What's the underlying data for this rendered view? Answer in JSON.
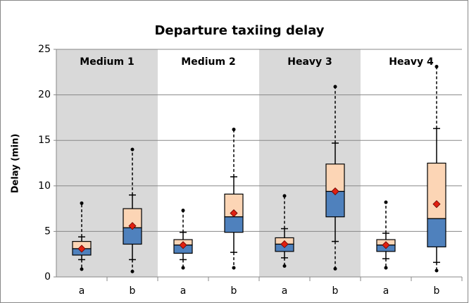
{
  "chart_data": {
    "type": "box",
    "title": "Departure taxiing delay",
    "y_label": "Delay (min)",
    "ylim": [
      0,
      25
    ],
    "yticks": [
      0,
      5,
      10,
      15,
      20,
      25
    ],
    "grid": true,
    "lower_color": "#4f81bd",
    "upper_color": "#fcd5b5",
    "mean_color": "#e02010",
    "shade_color": "#d9d9d9",
    "groups": [
      {
        "name": "Medium 1",
        "shaded": true,
        "boxes": [
          {
            "category": "a",
            "min": 0.85,
            "whisker_low": 1.9,
            "q1": 2.4,
            "median": 3.1,
            "q3": 3.9,
            "whisker_high": 4.4,
            "max": 8.1,
            "mean": 3.1
          },
          {
            "category": "b",
            "min": 0.6,
            "whisker_low": 1.9,
            "q1": 3.6,
            "median": 5.4,
            "q3": 7.5,
            "whisker_high": 9.0,
            "max": 14.0,
            "mean": 5.6
          }
        ]
      },
      {
        "name": "Medium 2",
        "shaded": false,
        "boxes": [
          {
            "category": "a",
            "min": 1.0,
            "whisker_low": 1.9,
            "q1": 2.6,
            "median": 3.5,
            "q3": 4.1,
            "whisker_high": 4.9,
            "max": 7.3,
            "mean": 3.5
          },
          {
            "category": "b",
            "min": 1.0,
            "whisker_low": 2.7,
            "q1": 4.9,
            "median": 6.6,
            "q3": 9.1,
            "whisker_high": 11.0,
            "max": 16.2,
            "mean": 7.0
          }
        ]
      },
      {
        "name": "Heavy 3",
        "shaded": true,
        "boxes": [
          {
            "category": "a",
            "min": 1.2,
            "whisker_low": 2.1,
            "q1": 2.8,
            "median": 3.6,
            "q3": 4.3,
            "whisker_high": 5.3,
            "max": 8.9,
            "mean": 3.6
          },
          {
            "category": "b",
            "min": 0.9,
            "whisker_low": 3.9,
            "q1": 6.6,
            "median": 9.4,
            "q3": 12.4,
            "whisker_high": 14.7,
            "max": 20.9,
            "mean": 9.4
          }
        ]
      },
      {
        "name": "Heavy 4",
        "shaded": false,
        "boxes": [
          {
            "category": "a",
            "min": 1.0,
            "whisker_low": 2.0,
            "q1": 2.8,
            "median": 3.5,
            "q3": 4.1,
            "whisker_high": 4.8,
            "max": 8.2,
            "mean": 3.5
          },
          {
            "category": "b",
            "min": 0.7,
            "whisker_low": 1.6,
            "q1": 3.3,
            "median": 6.4,
            "q3": 12.5,
            "whisker_high": 16.3,
            "max": 23.1,
            "mean": 8.0
          }
        ]
      }
    ]
  }
}
